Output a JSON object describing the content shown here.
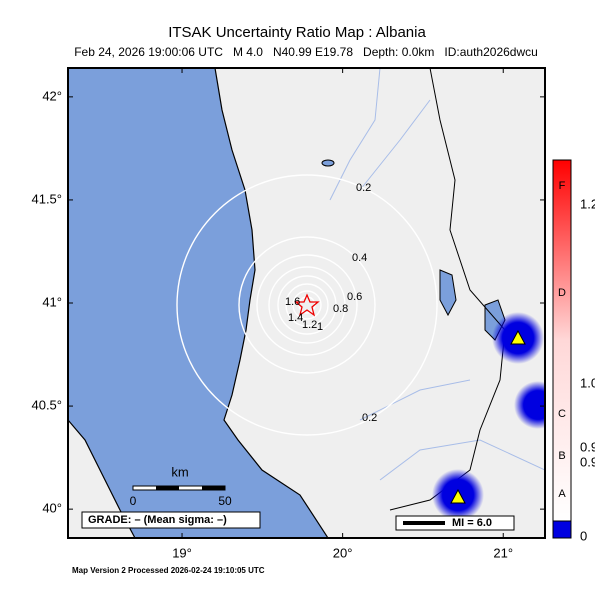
{
  "map": {
    "title": "ITSAK Uncertainty Ratio Map : Albania",
    "subtitle": "Feb 24, 2026 19:00:06 UTC   M 4.0   N40.99 E19.78   Depth: 0.0km   ID:auth2026dwcu",
    "lon_range": [
      18.29,
      21.26
    ],
    "lat_range": [
      39.86,
      42.14
    ],
    "lat_ticks": [
      {
        "value": 42,
        "label": "42°"
      },
      {
        "value": 41.5,
        "label": "41.5°"
      },
      {
        "value": 41,
        "label": "41°"
      },
      {
        "value": 40.5,
        "label": "40.5°"
      },
      {
        "value": 40,
        "label": "40°"
      }
    ],
    "lon_ticks": [
      {
        "value": 19,
        "label": "19°"
      },
      {
        "value": 20,
        "label": "20°"
      },
      {
        "value": 21,
        "label": "21°"
      }
    ],
    "contour_labels": [
      0.2,
      0.4,
      0.6,
      0.8,
      1,
      1.2,
      1.4,
      1.6,
      0.2
    ],
    "colorbar_labels": [
      "F",
      "1.2",
      "D",
      "1.0",
      "C",
      "0.9",
      "B",
      "0.9",
      "A",
      "0"
    ],
    "scale_bar": {
      "unit": "km",
      "start": 0,
      "end": 50
    },
    "grade": "GRADE: – (Mean sigma: –)",
    "intensity_legend": "MI = 6.0",
    "footer": "Map Version 2 Processed 2026-02-24 19:10:05 UTC"
  }
}
